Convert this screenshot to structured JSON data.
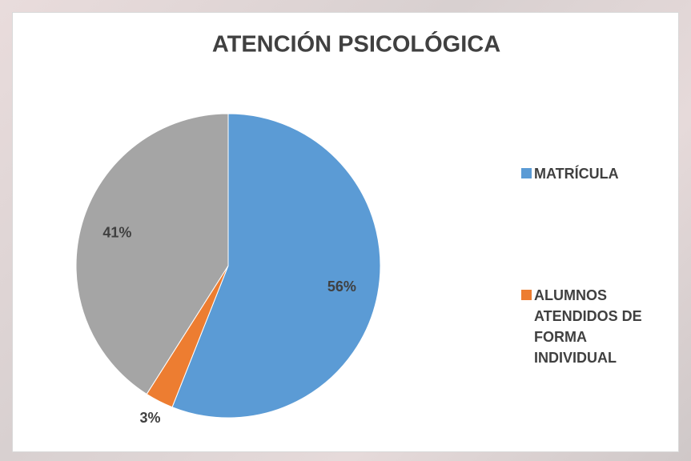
{
  "chart_data": {
    "type": "pie",
    "title": "ATENCIÓN PSICOLÓGICA",
    "categories": [
      "MATRÍCULA",
      "ALUMNOS ATENDIDOS DE FORMA INDIVIDUAL",
      null
    ],
    "values": [
      56,
      3,
      41
    ],
    "value_labels": [
      "56%",
      "3%",
      "41%"
    ],
    "colors": [
      "#5b9bd5",
      "#ed7d31",
      "#a5a5a5"
    ],
    "legend": "right"
  }
}
